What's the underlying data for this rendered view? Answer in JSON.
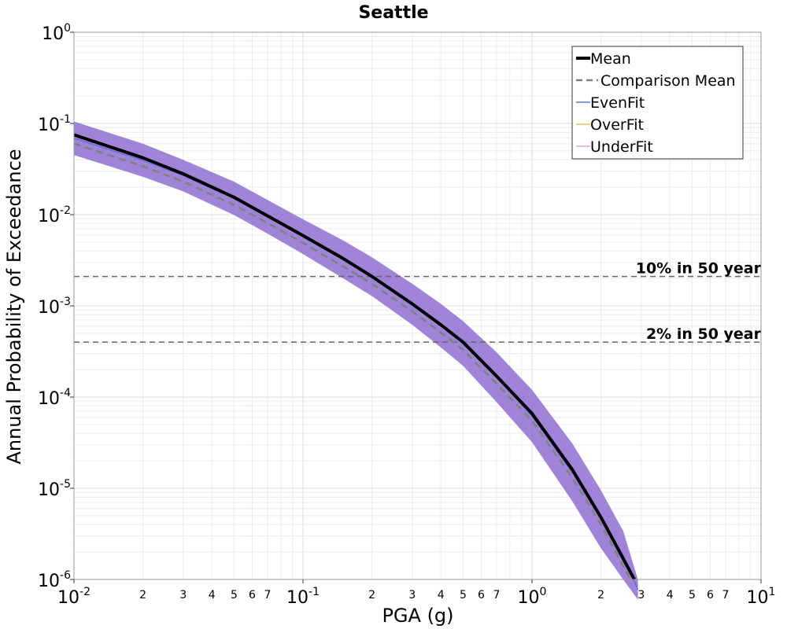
{
  "chart_data": {
    "type": "line",
    "title": "Seattle",
    "xlabel": "PGA (g)",
    "ylabel": "Annual Probability of Exceedance",
    "xscale": "log",
    "yscale": "log",
    "xlim": [
      0.01,
      10
    ],
    "ylim": [
      1e-06,
      1
    ],
    "grid": true,
    "legend_position": "top-right",
    "x_major_ticks": [
      {
        "base": "10",
        "exp": "-2"
      },
      {
        "base": "10",
        "exp": "-1"
      },
      {
        "base": "10",
        "exp": "0"
      },
      {
        "base": "10",
        "exp": "1"
      }
    ],
    "y_major_ticks": [
      {
        "base": "10",
        "exp": "0"
      },
      {
        "base": "10",
        "exp": "-1"
      },
      {
        "base": "10",
        "exp": "-2"
      },
      {
        "base": "10",
        "exp": "-3"
      },
      {
        "base": "10",
        "exp": "-4"
      },
      {
        "base": "10",
        "exp": "-5"
      },
      {
        "base": "10",
        "exp": "-6"
      }
    ],
    "x_minor_tick_labels": [
      "2",
      "3",
      "4",
      "5",
      "6",
      "7"
    ],
    "series": [
      {
        "name": "Mean",
        "color": "#000000",
        "style": "solid",
        "x": [
          0.01,
          0.02,
          0.03,
          0.05,
          0.07,
          0.1,
          0.15,
          0.2,
          0.3,
          0.4,
          0.5,
          0.7,
          1.0,
          1.5,
          2.0,
          2.5,
          2.8
        ],
        "y": [
          0.075,
          0.042,
          0.028,
          0.0155,
          0.0097,
          0.0059,
          0.0033,
          0.0021,
          0.00105,
          0.00062,
          0.0004,
          0.00017,
          6.6e-05,
          1.6e-05,
          4.8e-06,
          1.7e-06,
          1e-06
        ]
      },
      {
        "name": "Comparison Mean",
        "color": "#808080",
        "style": "dashed",
        "x": [
          0.01,
          0.02,
          0.03,
          0.05,
          0.07,
          0.1,
          0.15,
          0.2,
          0.3,
          0.4,
          0.5,
          0.7,
          1.0,
          1.5,
          2.0,
          2.5,
          2.7
        ],
        "y": [
          0.06,
          0.034,
          0.023,
          0.0128,
          0.0081,
          0.0049,
          0.0027,
          0.00175,
          0.00087,
          0.00051,
          0.00033,
          0.00014,
          5.5e-05,
          1.3e-05,
          4e-06,
          1.4e-06,
          1e-06
        ]
      },
      {
        "name": "EvenFit",
        "color": "#3b5bdb"
      },
      {
        "name": "OverFit",
        "color": "#f2b233"
      },
      {
        "name": "UnderFit",
        "color": "#e58fd8"
      }
    ],
    "band": {
      "color": "#8e6fd0",
      "x": [
        0.01,
        0.02,
        0.03,
        0.05,
        0.07,
        0.1,
        0.15,
        0.2,
        0.3,
        0.4,
        0.5,
        0.7,
        1.0,
        1.5,
        2.0,
        2.5,
        2.9
      ],
      "upper": [
        0.105,
        0.06,
        0.04,
        0.023,
        0.0145,
        0.0089,
        0.0052,
        0.0034,
        0.00175,
        0.00105,
        0.00068,
        0.00031,
        0.00012,
        3.1e-05,
        9.5e-06,
        3.4e-06,
        1e-06
      ],
      "lower": [
        0.045,
        0.026,
        0.018,
        0.0099,
        0.0062,
        0.0037,
        0.002,
        0.00128,
        0.00062,
        0.00035,
        0.00022,
        8.8e-05,
        3.2e-05,
        7.2e-06,
        2.2e-06,
        1e-06,
        6e-07
      ]
    },
    "reference_lines": [
      {
        "label": "10% in 50 year",
        "y": 0.0021
      },
      {
        "label": "2% in 50 year",
        "y": 0.0004
      }
    ]
  }
}
